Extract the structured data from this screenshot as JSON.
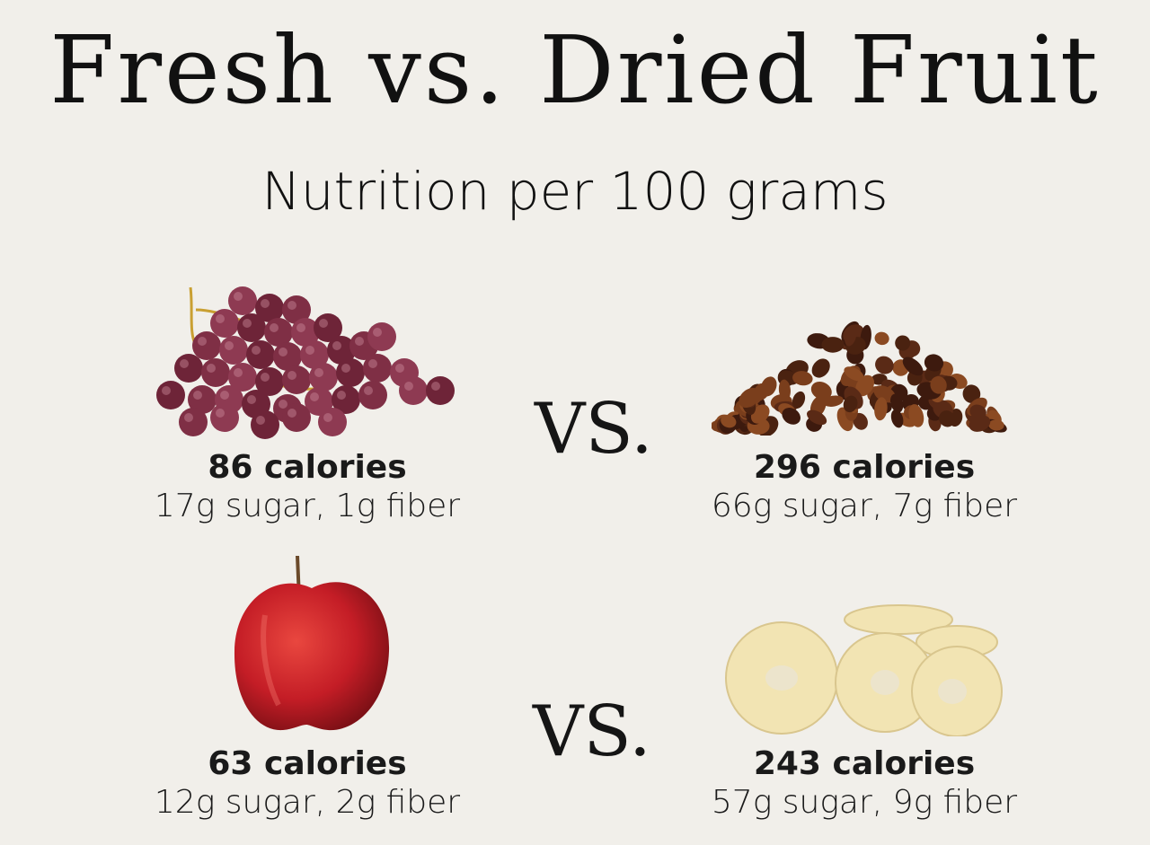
{
  "title": "Fresh vs. Dried Fruit",
  "subtitle": "Nutrition per 100 grams",
  "vs_label": "VS.",
  "comparisons": [
    {
      "fresh": {
        "image": "grapes-image",
        "calories": "86 calories",
        "nutrients": "17g sugar, 1g fiber"
      },
      "dried": {
        "image": "raisins-image",
        "calories": "296 calories",
        "nutrients": "66g sugar, 7g fiber"
      }
    },
    {
      "fresh": {
        "image": "apple-image",
        "calories": "63 calories",
        "nutrients": "12g sugar, 2g fiber"
      },
      "dried": {
        "image": "dried-apple-rings-image",
        "calories": "243 calories",
        "nutrients": "57g sugar, 9g fiber"
      }
    }
  ],
  "colors": {
    "background": "#f1efea",
    "text": "#111111",
    "grape": "#7a2d42",
    "raisin": "#5a2a16",
    "apple_red": "#c8202a",
    "dried_apple": "#f2e4b3"
  }
}
